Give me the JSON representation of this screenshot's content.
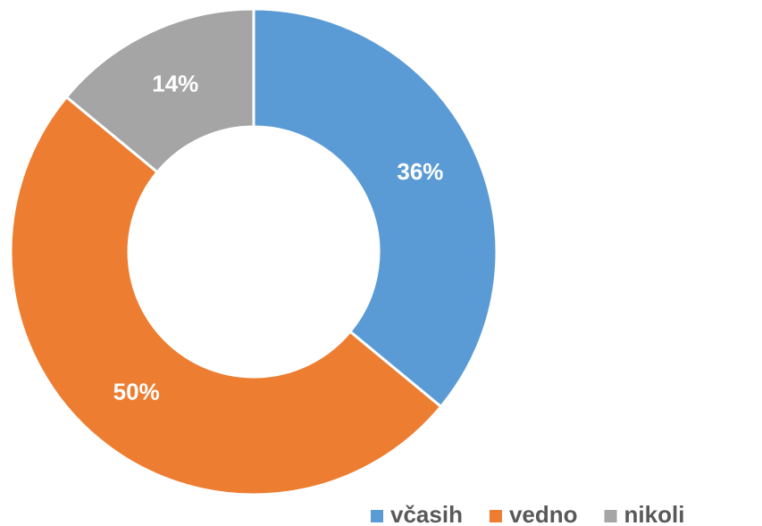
{
  "chart_data": {
    "type": "donut",
    "categories": [
      "včasih",
      "vedno",
      "nikoli"
    ],
    "values": [
      36,
      50,
      14
    ],
    "value_labels": [
      "36%",
      "50%",
      "14%"
    ],
    "colors": [
      "#5b9bd5",
      "#ed7d31",
      "#a5a5a5"
    ],
    "legend": "bottom-right"
  }
}
